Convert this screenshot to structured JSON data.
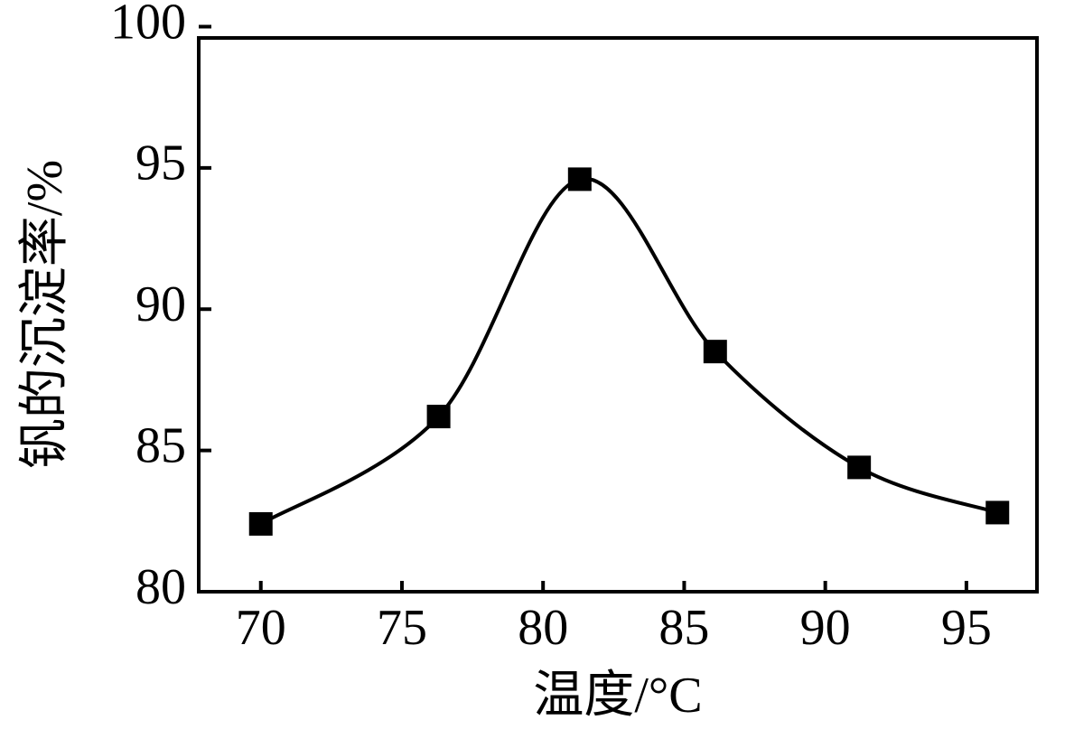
{
  "chart_data": {
    "type": "line",
    "x_label": "温度/°C",
    "y_label": "钒的沉淀率/%",
    "x": [
      70.0,
      76.3,
      81.3,
      86.1,
      91.2,
      96.1
    ],
    "series": [
      {
        "color": "#000000",
        "values": [
          82.4,
          86.2,
          94.6,
          88.5,
          84.4,
          82.8
        ]
      }
    ],
    "xlim": [
      67.8,
      97.5
    ],
    "xticks": [
      70,
      75,
      80,
      85,
      90,
      95
    ],
    "ylim": [
      80,
      99.6
    ],
    "yticks": [
      80,
      85,
      90,
      95,
      100
    ],
    "marker": "square",
    "smooth": true
  }
}
